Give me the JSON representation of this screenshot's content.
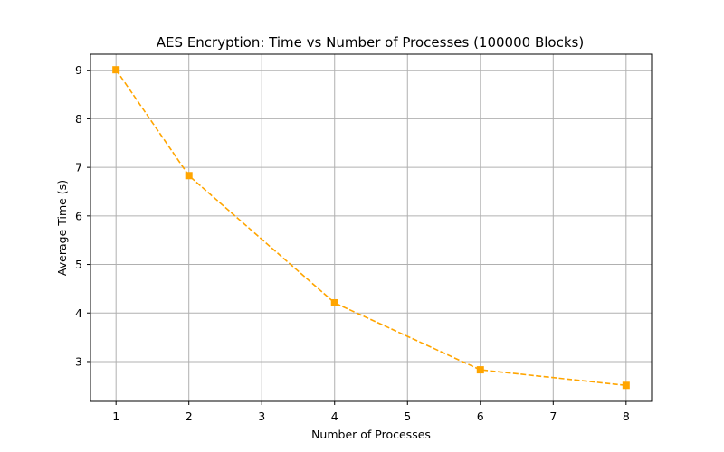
{
  "chart_data": {
    "type": "line",
    "title": "AES Encryption: Time vs Number of Processes (100000 Blocks)",
    "xlabel": "Number of Processes",
    "ylabel": "Average Time (s)",
    "xlim": [
      0.65,
      8.35
    ],
    "ylim": [
      2.18,
      9.33
    ],
    "xticks": [
      1,
      2,
      3,
      4,
      5,
      6,
      7,
      8
    ],
    "yticks": [
      3,
      4,
      5,
      6,
      7,
      8,
      9
    ],
    "grid": true,
    "series": [
      {
        "x": [
          1,
          2,
          4,
          6,
          8
        ],
        "y": [
          9.01,
          6.83,
          4.21,
          2.83,
          2.51
        ],
        "color": "#ffa500",
        "line_style": "dashed",
        "marker": "square"
      }
    ]
  }
}
